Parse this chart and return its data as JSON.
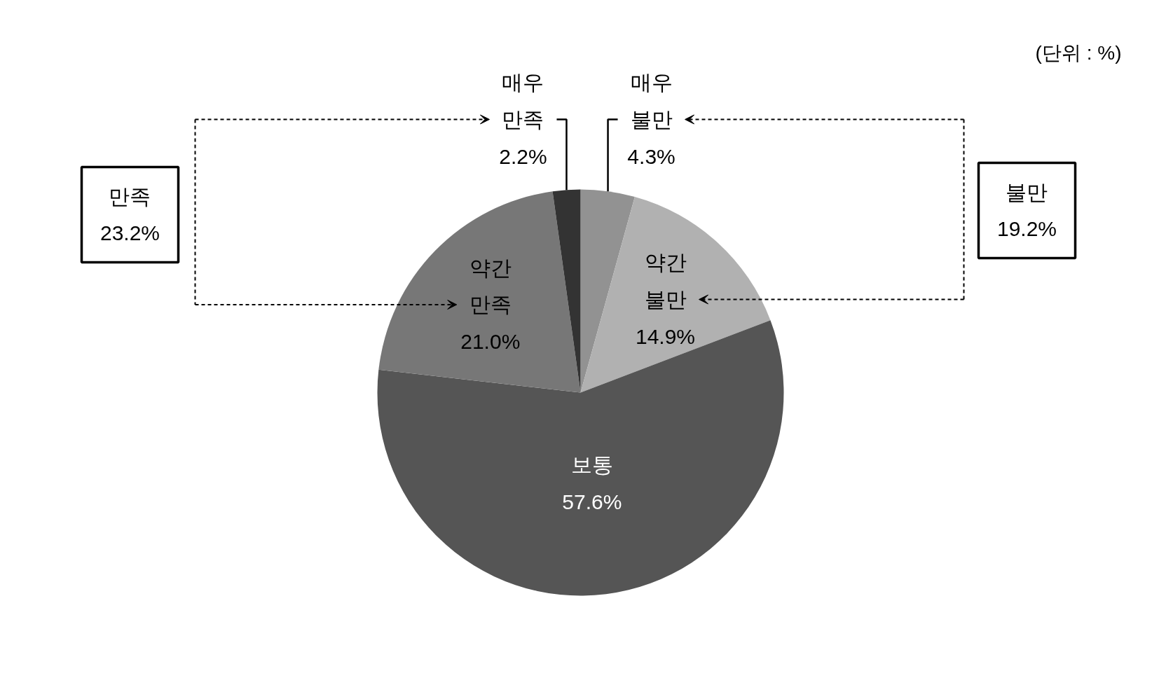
{
  "chart_data": {
    "type": "pie",
    "categories": [
      "매우 불만",
      "약간 불만",
      "보통",
      "약간 만족",
      "매우 만족"
    ],
    "values": [
      4.3,
      14.9,
      57.6,
      21.0,
      2.2
    ],
    "colors": [
      "#929292",
      "#b1b1b1",
      "#555555",
      "#777777",
      "#333333"
    ],
    "value_labels": [
      "4.3%",
      "14.9%",
      "57.6%",
      "21.0%",
      "2.2%"
    ],
    "annotations": [
      "(단위 : %)",
      "만족 23.2%",
      "불만 19.2%"
    ]
  }
}
